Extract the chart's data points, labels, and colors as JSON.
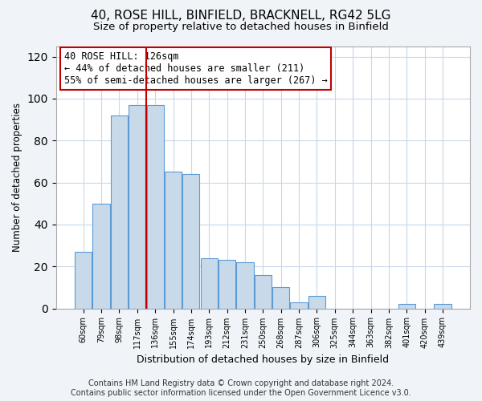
{
  "title": "40, ROSE HILL, BINFIELD, BRACKNELL, RG42 5LG",
  "subtitle": "Size of property relative to detached houses in Binfield",
  "xlabel": "Distribution of detached houses by size in Binfield",
  "ylabel": "Number of detached properties",
  "categories": [
    "60sqm",
    "79sqm",
    "98sqm",
    "117sqm",
    "136sqm",
    "155sqm",
    "174sqm",
    "193sqm",
    "212sqm",
    "231sqm",
    "250sqm",
    "268sqm",
    "287sqm",
    "306sqm",
    "325sqm",
    "344sqm",
    "363sqm",
    "382sqm",
    "401sqm",
    "420sqm",
    "439sqm"
  ],
  "values": [
    27,
    50,
    92,
    97,
    97,
    65,
    64,
    24,
    23,
    22,
    16,
    10,
    3,
    6,
    0,
    0,
    0,
    0,
    2,
    0,
    2
  ],
  "bar_color": "#c8daea",
  "bar_edge_color": "#5b9bd5",
  "highlight_line_color": "#c00000",
  "annotation_box_text": "40 ROSE HILL: 126sqm\n← 44% of detached houses are smaller (211)\n55% of semi-detached houses are larger (267) →",
  "annotation_box_edge_color": "#c00000",
  "annotation_fontsize": 8.5,
  "ylim": [
    0,
    125
  ],
  "yticks": [
    0,
    20,
    40,
    60,
    80,
    100,
    120
  ],
  "title_fontsize": 11,
  "subtitle_fontsize": 9.5,
  "xlabel_fontsize": 9,
  "ylabel_fontsize": 8.5,
  "footer_line1": "Contains HM Land Registry data © Crown copyright and database right 2024.",
  "footer_line2": "Contains public sector information licensed under the Open Government Licence v3.0.",
  "footer_fontsize": 7,
  "background_color": "#f0f4f8",
  "plot_bg_color": "#ffffff"
}
